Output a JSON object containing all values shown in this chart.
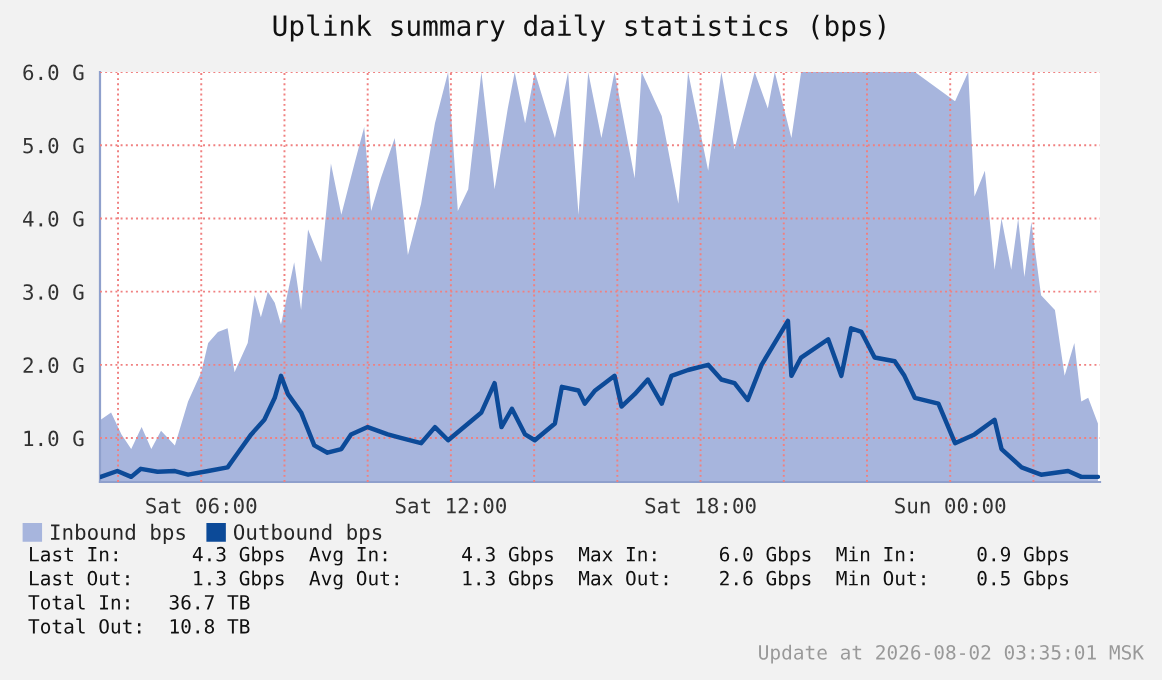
{
  "chart_data": {
    "type": "area",
    "title": "Uplink summary daily statistics (bps)",
    "series": [
      {
        "name": "Inbound bps",
        "color": "#a7b5dd",
        "x": [
          "2026-08-01T03:35",
          "2026-08-01T03:50",
          "2026-08-01T04:05",
          "2026-08-01T04:19",
          "2026-08-01T04:34",
          "2026-08-01T04:48",
          "2026-08-01T05:02",
          "2026-08-01T05:22",
          "2026-08-01T05:41",
          "2026-08-01T06:00",
          "2026-08-01T06:10",
          "2026-08-01T06:24",
          "2026-08-01T06:38",
          "2026-08-01T06:48",
          "2026-08-01T07:07",
          "2026-08-01T07:17",
          "2026-08-01T07:26",
          "2026-08-01T07:36",
          "2026-08-01T07:46",
          "2026-08-01T07:55",
          "2026-08-01T08:14",
          "2026-08-01T08:24",
          "2026-08-01T08:34",
          "2026-08-01T08:53",
          "2026-08-01T09:07",
          "2026-08-01T09:22",
          "2026-08-01T09:41",
          "2026-08-01T09:55",
          "2026-08-01T10:05",
          "2026-08-01T10:19",
          "2026-08-01T10:39",
          "2026-08-01T10:58",
          "2026-08-01T11:17",
          "2026-08-01T11:37",
          "2026-08-01T11:56",
          "2026-08-01T12:10",
          "2026-08-01T12:25",
          "2026-08-01T12:44",
          "2026-08-01T13:03",
          "2026-08-01T13:22",
          "2026-08-01T13:32",
          "2026-08-01T13:47",
          "2026-08-01T14:01",
          "2026-08-01T14:30",
          "2026-08-01T14:49",
          "2026-08-01T15:04",
          "2026-08-01T15:18",
          "2026-08-01T15:37",
          "2026-08-01T15:56",
          "2026-08-01T16:16",
          "2026-08-01T16:25",
          "2026-08-01T16:35",
          "2026-08-01T17:04",
          "2026-08-01T17:28",
          "2026-08-01T17:42",
          "2026-08-01T18:11",
          "2026-08-01T18:30",
          "2026-08-01T18:49",
          "2026-08-01T19:18",
          "2026-08-01T19:37",
          "2026-08-01T19:47",
          "2026-08-01T20:11",
          "2026-08-01T20:25",
          "2026-08-01T21:30",
          "2026-08-01T23:09",
          "2026-08-02T00:07",
          "2026-08-02T00:26",
          "2026-08-02T00:35",
          "2026-08-02T00:50",
          "2026-08-02T01:04",
          "2026-08-02T01:14",
          "2026-08-02T01:28",
          "2026-08-02T01:38",
          "2026-08-02T01:47",
          "2026-08-02T01:57",
          "2026-08-02T02:11",
          "2026-08-02T02:31",
          "2026-08-02T02:45",
          "2026-08-02T02:59",
          "2026-08-02T03:09",
          "2026-08-02T03:19",
          "2026-08-02T03:33"
        ],
        "values": [
          1.25,
          1.35,
          1.05,
          0.85,
          1.15,
          0.85,
          1.1,
          0.9,
          1.5,
          1.9,
          2.3,
          2.45,
          2.5,
          1.9,
          2.3,
          2.95,
          2.65,
          3.0,
          2.85,
          2.55,
          3.4,
          2.75,
          3.85,
          3.4,
          4.75,
          4.05,
          4.75,
          5.25,
          4.1,
          4.55,
          5.1,
          3.5,
          4.2,
          5.3,
          6.0,
          4.1,
          4.4,
          6.0,
          4.4,
          5.5,
          6.0,
          5.3,
          6.0,
          5.1,
          6.0,
          4.05,
          6.0,
          5.1,
          6.0,
          5.0,
          4.55,
          6.0,
          5.4,
          4.2,
          6.0,
          4.65,
          6.0,
          4.95,
          6.0,
          5.5,
          6.0,
          5.1,
          6.0,
          6.0,
          6.0,
          5.6,
          6.0,
          4.3,
          4.65,
          3.3,
          4.0,
          3.3,
          4.0,
          3.2,
          3.95,
          2.95,
          2.75,
          1.85,
          2.3,
          1.5,
          1.55,
          1.2
        ]
      },
      {
        "name": "Outbound bps",
        "type": "line",
        "color": "#0c4a98",
        "x": [
          "2026-08-01T03:35",
          "2026-08-01T03:59",
          "2026-08-01T04:19",
          "2026-08-01T04:33",
          "2026-08-01T04:57",
          "2026-08-01T05:22",
          "2026-08-01T05:41",
          "2026-08-01T06:10",
          "2026-08-01T06:38",
          "2026-08-01T06:53",
          "2026-08-01T07:12",
          "2026-08-01T07:31",
          "2026-08-01T07:46",
          "2026-08-01T07:55",
          "2026-08-01T08:05",
          "2026-08-01T08:24",
          "2026-08-01T08:43",
          "2026-08-01T09:02",
          "2026-08-01T09:22",
          "2026-08-01T09:36",
          "2026-08-01T10:00",
          "2026-08-01T10:29",
          "2026-08-01T10:49",
          "2026-08-01T11:17",
          "2026-08-01T11:37",
          "2026-08-01T11:56",
          "2026-08-01T12:25",
          "2026-08-01T12:44",
          "2026-08-01T13:03",
          "2026-08-01T13:13",
          "2026-08-01T13:28",
          "2026-08-01T13:47",
          "2026-08-01T14:01",
          "2026-08-01T14:30",
          "2026-08-01T14:40",
          "2026-08-01T15:04",
          "2026-08-01T15:13",
          "2026-08-01T15:28",
          "2026-08-01T15:56",
          "2026-08-01T16:06",
          "2026-08-01T16:25",
          "2026-08-01T16:44",
          "2026-08-01T17:04",
          "2026-08-01T17:18",
          "2026-08-01T17:42",
          "2026-08-01T18:11",
          "2026-08-01T18:30",
          "2026-08-01T18:49",
          "2026-08-01T19:08",
          "2026-08-01T19:28",
          "2026-08-01T20:06",
          "2026-08-01T20:11",
          "2026-08-01T20:25",
          "2026-08-01T21:04",
          "2026-08-01T21:23",
          "2026-08-01T21:37",
          "2026-08-01T21:52",
          "2026-08-01T22:11",
          "2026-08-01T22:40",
          "2026-08-01T22:54",
          "2026-08-01T23:09",
          "2026-08-01T23:43",
          "2026-08-02T00:07",
          "2026-08-02T00:35",
          "2026-08-02T01:04",
          "2026-08-02T01:14",
          "2026-08-02T01:43",
          "2026-08-02T02:11",
          "2026-08-02T02:50",
          "2026-08-02T03:09",
          "2026-08-02T03:33"
        ],
        "values": [
          0.47,
          0.55,
          0.47,
          0.58,
          0.54,
          0.55,
          0.5,
          0.55,
          0.6,
          0.8,
          1.05,
          1.25,
          1.55,
          1.85,
          1.6,
          1.35,
          0.9,
          0.8,
          0.85,
          1.05,
          1.15,
          1.05,
          1.0,
          0.93,
          1.15,
          0.97,
          1.2,
          1.35,
          1.75,
          1.15,
          1.4,
          1.05,
          0.97,
          1.2,
          1.7,
          1.65,
          1.47,
          1.65,
          1.85,
          1.43,
          1.6,
          1.8,
          1.47,
          1.85,
          1.93,
          2.0,
          1.8,
          1.75,
          1.52,
          2.0,
          2.6,
          1.85,
          2.1,
          2.35,
          1.85,
          2.5,
          2.45,
          2.1,
          2.05,
          1.85,
          1.55,
          1.47,
          0.93,
          1.05,
          1.25,
          0.85,
          0.6,
          0.5,
          0.55,
          0.47,
          0.47
        ]
      }
    ],
    "xlim": [
      "2026-08-01T03:34",
      "2026-08-02T03:36"
    ],
    "xticks": [
      {
        "value": "2026-08-01T04:00",
        "label": null
      },
      {
        "value": "2026-08-01T06:00",
        "label": "Sat 06:00"
      },
      {
        "value": "2026-08-01T08:00",
        "label": null
      },
      {
        "value": "2026-08-01T10:00",
        "label": null
      },
      {
        "value": "2026-08-01T12:00",
        "label": "Sat 12:00"
      },
      {
        "value": "2026-08-01T14:00",
        "label": null
      },
      {
        "value": "2026-08-01T16:00",
        "label": null
      },
      {
        "value": "2026-08-01T18:00",
        "label": "Sat 18:00"
      },
      {
        "value": "2026-08-01T20:00",
        "label": null
      },
      {
        "value": "2026-08-01T22:00",
        "label": null
      },
      {
        "value": "2026-08-02T00:00",
        "label": "Sun 00:00"
      },
      {
        "value": "2026-08-02T02:00",
        "label": null
      }
    ],
    "ylim": [
      0.4,
      6.0
    ],
    "yticks": [
      {
        "value": 1,
        "label": "1.0 G"
      },
      {
        "value": 2,
        "label": "2.0 G"
      },
      {
        "value": 3,
        "label": "3.0 G"
      },
      {
        "value": 4,
        "label": "4.0 G"
      },
      {
        "value": 5,
        "label": "5.0 G"
      },
      {
        "value": 6,
        "label": "6.0 G"
      }
    ],
    "grid": true,
    "legend": "bottom",
    "annotations": [
      "Last In:      4.3 Gbps  Avg In:      4.3 Gbps  Max In:     6.0 Gbps  Min In:     0.9 Gbps",
      "Last Out:     1.3 Gbps  Avg Out:     1.3 Gbps  Max Out:    2.6 Gbps  Min Out:    0.5 Gbps",
      "Total In:   36.7 TB",
      "Total Out:  10.8 TB",
      "Update at 2026-08-02 03:35:01 MSK"
    ]
  }
}
